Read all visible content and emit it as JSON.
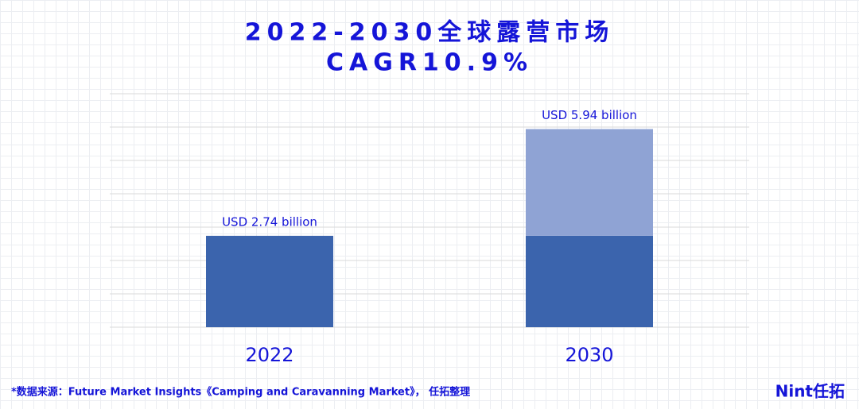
{
  "chart_data": {
    "type": "stacked_bar",
    "title": "2022-2030全球露营市场",
    "subtitle": "CAGR10.9%",
    "categories": [
      "2022",
      "2030"
    ],
    "series": [
      {
        "color": "#3b64ad",
        "values": [
          2.74,
          2.74
        ]
      },
      {
        "color": "#8fa3d4",
        "values": [
          null,
          3.2
        ]
      }
    ],
    "annotations": [
      "USD 2.74 billion",
      "USD 5.94 billion"
    ],
    "ylim": [
      0,
      7
    ],
    "yticks": [
      0,
      1,
      2,
      3,
      4,
      5,
      6,
      7
    ],
    "grid": true,
    "source": "*数据来源：Future Market Insights《Camping and Caravanning Market》， 任拓整理",
    "brand": "Nint任拓"
  }
}
